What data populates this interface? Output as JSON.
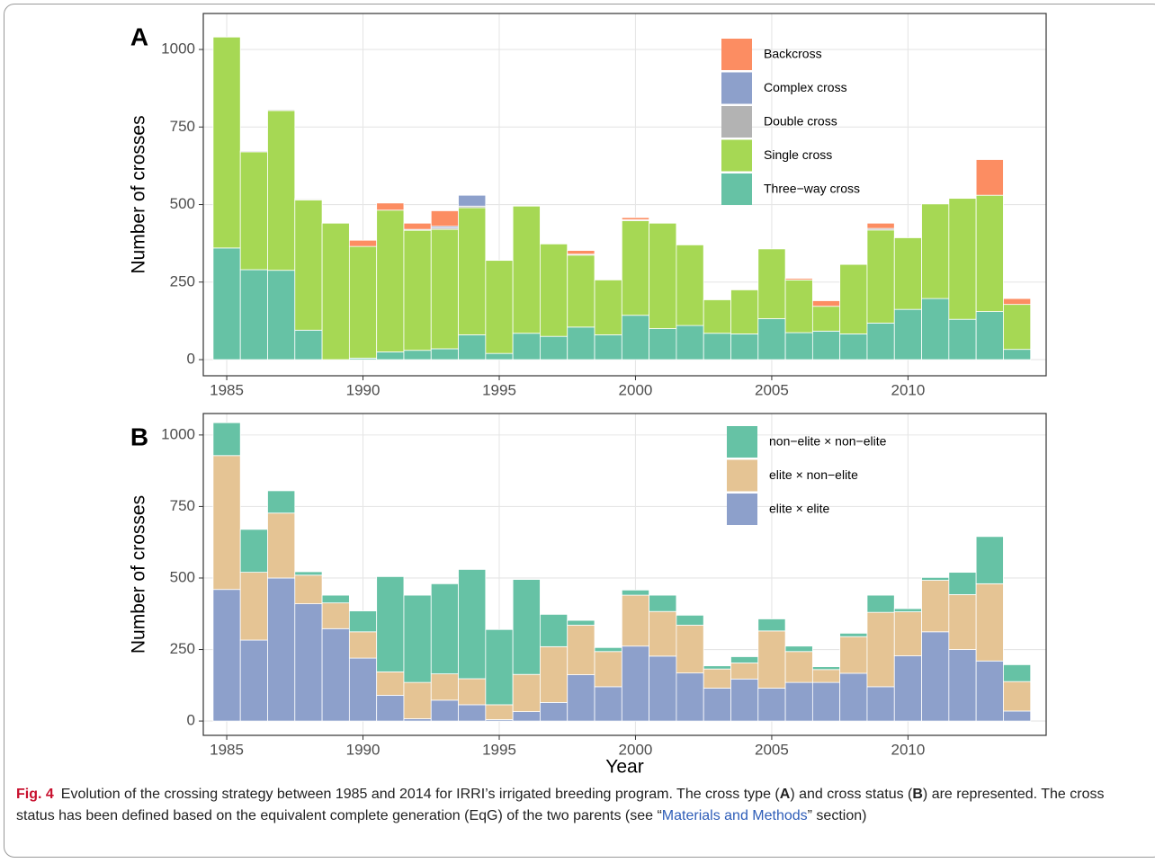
{
  "chart_data": [
    {
      "type": "bar",
      "stacked": true,
      "panel_label": "A",
      "ylabel": "Number of crosses",
      "x": [
        1985,
        1986,
        1987,
        1988,
        1989,
        1990,
        1991,
        1992,
        1993,
        1994,
        1995,
        1996,
        1997,
        1998,
        1999,
        2000,
        2001,
        2002,
        2003,
        2004,
        2005,
        2006,
        2007,
        2008,
        2009,
        2010,
        2011,
        2012,
        2013,
        2014
      ],
      "series": [
        {
          "name": "Backcross",
          "color": "#fc8d62",
          "values": [
            0,
            0,
            0,
            2,
            0,
            20,
            23,
            20,
            50,
            0,
            0,
            0,
            0,
            12,
            0,
            7,
            0,
            0,
            0,
            0,
            0,
            5,
            18,
            0,
            17,
            0,
            0,
            0,
            115,
            19
          ]
        },
        {
          "name": "Complex cross",
          "color": "#8da0cb",
          "values": [
            0,
            0,
            0,
            0,
            0,
            0,
            0,
            0,
            5,
            35,
            0,
            0,
            0,
            0,
            0,
            0,
            0,
            0,
            0,
            0,
            0,
            0,
            0,
            0,
            0,
            0,
            0,
            0,
            0,
            0
          ]
        },
        {
          "name": "Double cross",
          "color": "#b3b3b3",
          "values": [
            0,
            3,
            3,
            3,
            0,
            0,
            0,
            3,
            5,
            5,
            0,
            0,
            0,
            3,
            0,
            3,
            0,
            0,
            0,
            0,
            0,
            0,
            0,
            0,
            5,
            0,
            0,
            0,
            0,
            0
          ]
        },
        {
          "name": "Single cross",
          "color": "#a6d854",
          "values": [
            680,
            380,
            515,
            420,
            440,
            360,
            457,
            387,
            385,
            410,
            300,
            410,
            298,
            232,
            177,
            305,
            340,
            260,
            108,
            142,
            225,
            170,
            80,
            224,
            300,
            231,
            305,
            390,
            375,
            145
          ]
        },
        {
          "name": "Three−way cross",
          "color": "#66c2a5",
          "values": [
            360,
            290,
            288,
            95,
            0,
            5,
            25,
            30,
            35,
            80,
            20,
            85,
            75,
            105,
            80,
            143,
            100,
            110,
            85,
            83,
            132,
            87,
            92,
            83,
            118,
            162,
            197,
            130,
            155,
            33
          ]
        }
      ],
      "xlim": [
        1984.14,
        2015.07
      ],
      "ylim": [
        -52,
        1116
      ],
      "xticks": [
        1985,
        1990,
        1995,
        2000,
        2005,
        2010
      ],
      "yticks": [
        0,
        250,
        500,
        750,
        1000
      ],
      "grid": true,
      "legend": "top-right"
    },
    {
      "type": "bar",
      "stacked": true,
      "panel_label": "B",
      "ylabel": "Number of crosses",
      "xlabel": "Year",
      "x": [
        1985,
        1986,
        1987,
        1988,
        1989,
        1990,
        1991,
        1992,
        1993,
        1994,
        1995,
        1996,
        1997,
        1998,
        1999,
        2000,
        2001,
        2002,
        2003,
        2004,
        2005,
        2006,
        2007,
        2008,
        2009,
        2010,
        2011,
        2012,
        2013,
        2014
      ],
      "series": [
        {
          "name": "non−elite × non−elite",
          "color": "#66c2a5",
          "values": [
            115,
            150,
            78,
            12,
            27,
            73,
            333,
            305,
            315,
            382,
            263,
            332,
            113,
            17,
            14,
            18,
            57,
            35,
            11,
            22,
            42,
            19,
            10,
            12,
            60,
            11,
            10,
            78,
            165,
            59
          ]
        },
        {
          "name": "elite × non−elite",
          "color": "#e5c494",
          "values": [
            468,
            237,
            227,
            100,
            90,
            92,
            82,
            127,
            92,
            91,
            52,
            130,
            195,
            173,
            123,
            178,
            156,
            167,
            67,
            56,
            200,
            108,
            45,
            128,
            260,
            154,
            180,
            192,
            270,
            103
          ]
        },
        {
          "name": "elite × elite",
          "color": "#8da0cb",
          "values": [
            460,
            283,
            500,
            410,
            323,
            220,
            90,
            8,
            73,
            57,
            5,
            33,
            65,
            162,
            120,
            262,
            227,
            168,
            115,
            147,
            115,
            135,
            135,
            167,
            120,
            228,
            312,
            250,
            210,
            35
          ]
        }
      ],
      "xlim": [
        1984.14,
        2015.07
      ],
      "ylim": [
        -50,
        1075
      ],
      "xticks": [
        1985,
        1990,
        1995,
        2000,
        2005,
        2010
      ],
      "yticks": [
        0,
        250,
        500,
        750,
        1000
      ],
      "grid": true,
      "legend": "top-right"
    }
  ],
  "caption": {
    "label": "Fig. 4",
    "parts": [
      "Evolution of the crossing strategy between 1985 and 2014 for IRRI’s irrigated breeding program. The cross type (",
      "A",
      ") and cross status (",
      "B",
      ") are represented. The cross status has been defined based on the equivalent complete generation (EqG) of the two parents (see “",
      "Materials and Methods",
      "” section)"
    ]
  }
}
